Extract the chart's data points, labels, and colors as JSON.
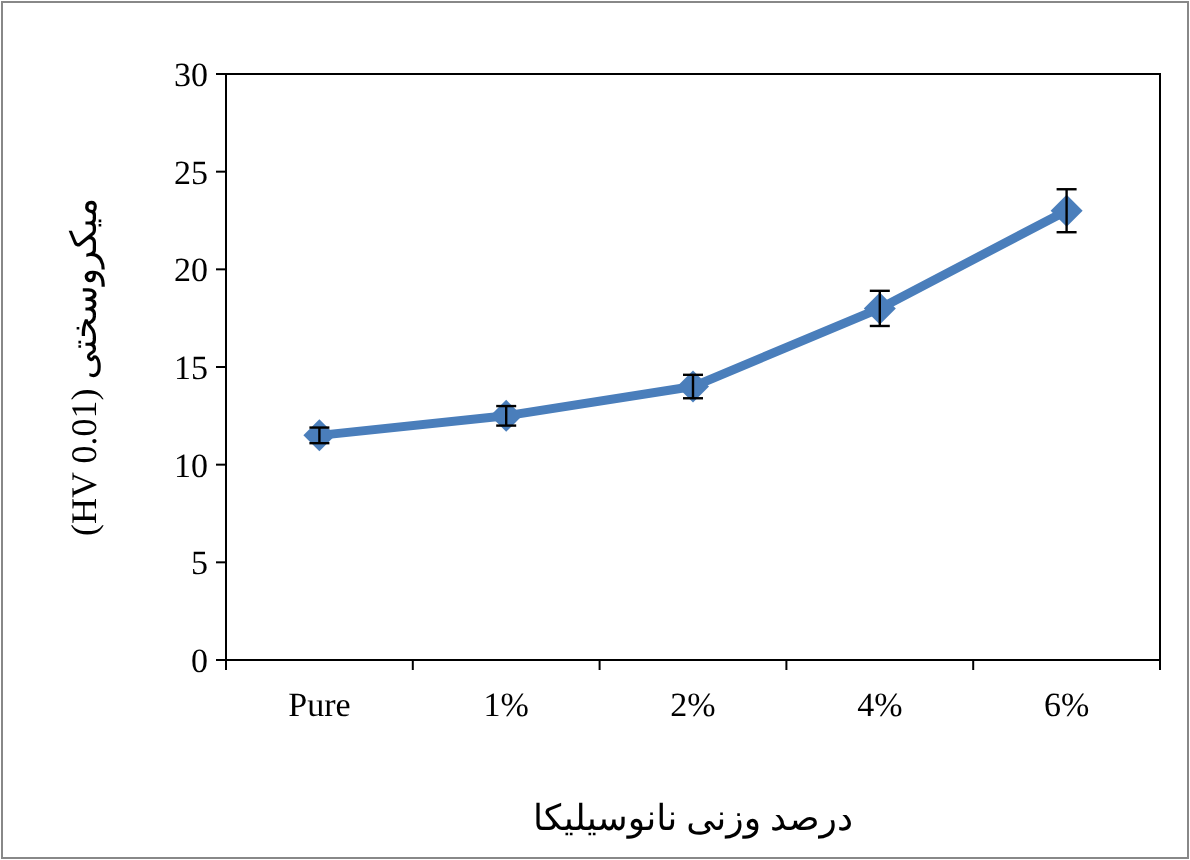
{
  "chart_data": {
    "type": "line",
    "xlabel": "درصد وزنی نانوسیلیکا",
    "ylabel": "میکروسختی (HV 0.01)",
    "categories": [
      "Pure",
      "1%",
      "2%",
      "4%",
      "6%"
    ],
    "series": [
      {
        "color": "#4a7ebb",
        "values": [
          11.5,
          12.5,
          14,
          18,
          23
        ],
        "errors": [
          0.4,
          0.5,
          0.6,
          0.9,
          1.1
        ]
      }
    ],
    "ylim": [
      0,
      30
    ],
    "yticks": [
      0,
      5,
      10,
      15,
      20,
      25,
      30
    ],
    "grid": false,
    "marker": "diamond",
    "line_style": "solid"
  }
}
